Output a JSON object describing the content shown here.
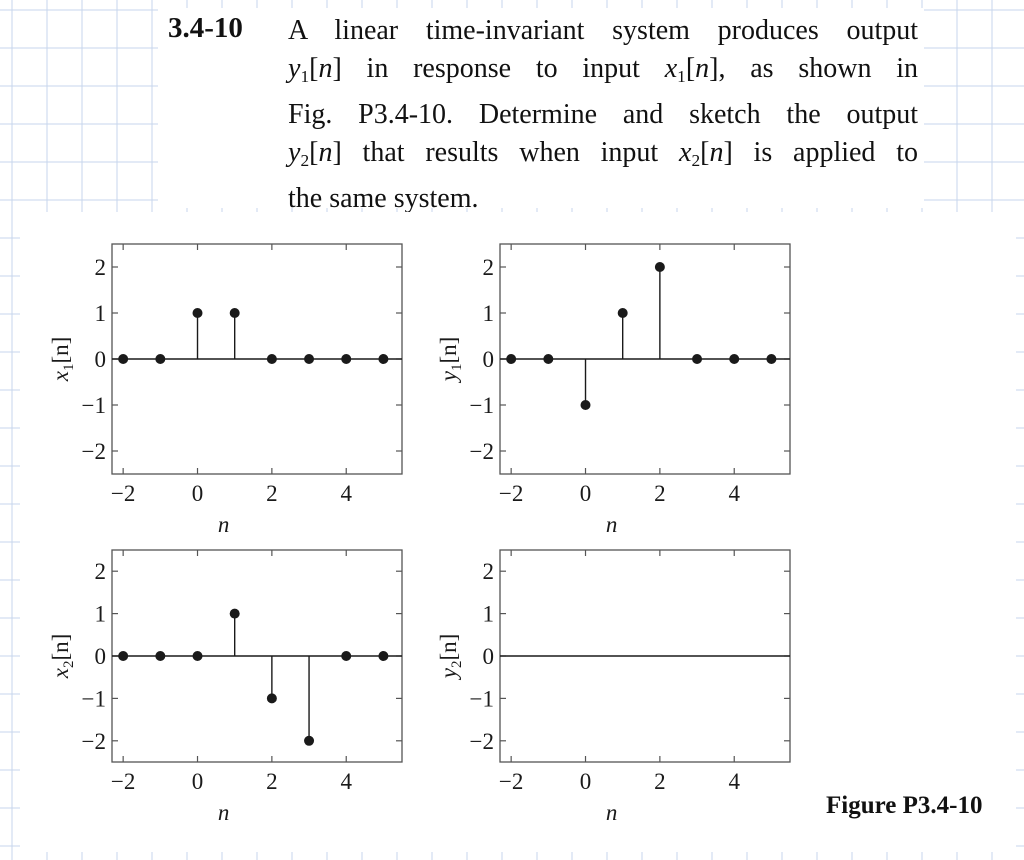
{
  "problem": {
    "number": "3.4-10",
    "text_lines": [
      {
        "parts": [
          {
            "text": "A linear time-invariant system produces output",
            "style": "normal"
          }
        ]
      },
      {
        "parts": [
          {
            "text": "y",
            "style": "it"
          },
          {
            "text": "1",
            "style": "sub"
          },
          {
            "text": "[",
            "style": "normal"
          },
          {
            "text": "n",
            "style": "it"
          },
          {
            "text": "] in response to input ",
            "style": "normal"
          },
          {
            "text": "x",
            "style": "it"
          },
          {
            "text": "1",
            "style": "sub"
          },
          {
            "text": "[",
            "style": "normal"
          },
          {
            "text": "n",
            "style": "it"
          },
          {
            "text": "], as shown in",
            "style": "normal"
          }
        ]
      },
      {
        "parts": [
          {
            "text": "Fig. P3.4-10. Determine and sketch the output",
            "style": "normal"
          }
        ]
      },
      {
        "parts": [
          {
            "text": "y",
            "style": "it"
          },
          {
            "text": "2",
            "style": "sub"
          },
          {
            "text": "[",
            "style": "normal"
          },
          {
            "text": "n",
            "style": "it"
          },
          {
            "text": "] that results when input ",
            "style": "normal"
          },
          {
            "text": "x",
            "style": "it"
          },
          {
            "text": "2",
            "style": "sub"
          },
          {
            "text": "[",
            "style": "normal"
          },
          {
            "text": "n",
            "style": "it"
          },
          {
            "text": "] is applied to",
            "style": "normal"
          }
        ]
      },
      {
        "parts": [
          {
            "text": "the same system.",
            "style": "normal"
          }
        ]
      }
    ]
  },
  "figure": {
    "caption": "Figure P3.4-10",
    "colors": {
      "ink": "#1a1a1a",
      "grid": "#c7d6ec",
      "frame": "#555555"
    }
  },
  "chart_data": [
    {
      "type": "stem",
      "ylabel_var": "x",
      "ylabel_sub": "1",
      "ylabel_arg": "[n]",
      "xlabel": "n",
      "xlim": [
        -2.3,
        5.5
      ],
      "ylim": [
        -2.5,
        2.5
      ],
      "xticks": [
        -2,
        0,
        2,
        4
      ],
      "xtick_labels": [
        "−2",
        "0",
        "2",
        "4"
      ],
      "yticks": [
        -2,
        -1,
        0,
        1,
        2
      ],
      "ytick_labels": [
        "−2",
        "−1",
        "0",
        "1",
        "2"
      ],
      "x": [
        -2,
        -1,
        0,
        1,
        2,
        3,
        4,
        5
      ],
      "values": [
        0,
        0,
        1,
        1,
        0,
        0,
        0,
        0
      ]
    },
    {
      "type": "stem",
      "ylabel_var": "y",
      "ylabel_sub": "1",
      "ylabel_arg": "[n]",
      "xlabel": "n",
      "xlim": [
        -2.3,
        5.5
      ],
      "ylim": [
        -2.5,
        2.5
      ],
      "xticks": [
        -2,
        0,
        2,
        4
      ],
      "xtick_labels": [
        "−2",
        "0",
        "2",
        "4"
      ],
      "yticks": [
        -2,
        -1,
        0,
        1,
        2
      ],
      "ytick_labels": [
        "−2",
        "−1",
        "0",
        "1",
        "2"
      ],
      "x": [
        -2,
        -1,
        0,
        1,
        2,
        3,
        4,
        5
      ],
      "values": [
        0,
        0,
        -1,
        1,
        2,
        0,
        0,
        0
      ]
    },
    {
      "type": "stem",
      "ylabel_var": "x",
      "ylabel_sub": "2",
      "ylabel_arg": "[n]",
      "xlabel": "n",
      "xlim": [
        -2.3,
        5.5
      ],
      "ylim": [
        -2.5,
        2.5
      ],
      "xticks": [
        -2,
        0,
        2,
        4
      ],
      "xtick_labels": [
        "−2",
        "0",
        "2",
        "4"
      ],
      "yticks": [
        -2,
        -1,
        0,
        1,
        2
      ],
      "ytick_labels": [
        "−2",
        "−1",
        "0",
        "1",
        "2"
      ],
      "x": [
        -2,
        -1,
        0,
        1,
        2,
        3,
        4,
        5
      ],
      "values": [
        0,
        0,
        0,
        1,
        -1,
        -2,
        0,
        0
      ]
    },
    {
      "type": "stem",
      "ylabel_var": "y",
      "ylabel_sub": "2",
      "ylabel_arg": "[n]",
      "xlabel": "n",
      "xlim": [
        -2.3,
        5.5
      ],
      "ylim": [
        -2.5,
        2.5
      ],
      "xticks": [
        -2,
        0,
        2,
        4
      ],
      "xtick_labels": [
        "−2",
        "0",
        "2",
        "4"
      ],
      "yticks": [
        -2,
        -1,
        0,
        1,
        2
      ],
      "ytick_labels": [
        "−2",
        "−1",
        "0",
        "1",
        "2"
      ],
      "x": [],
      "values": []
    }
  ]
}
